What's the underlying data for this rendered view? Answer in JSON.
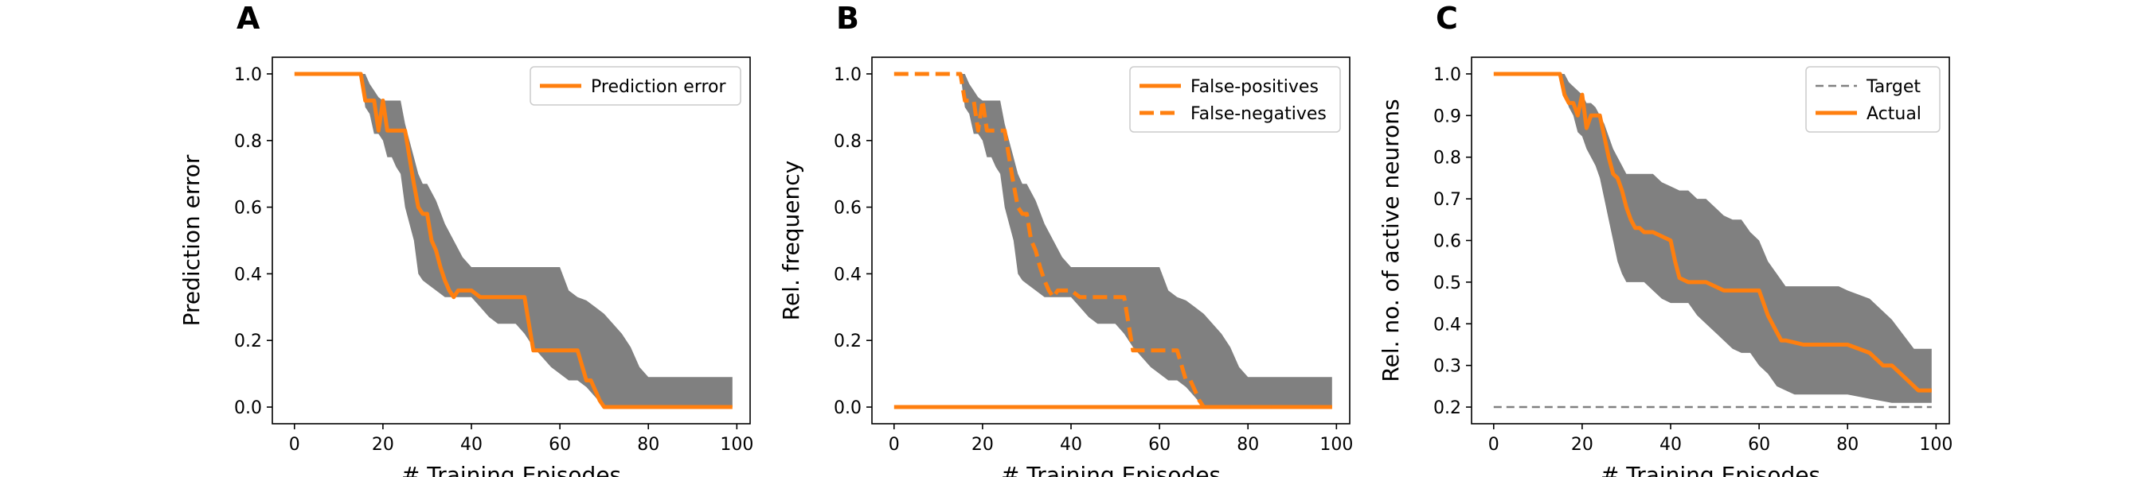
{
  "chart_data": [
    {
      "panel": "A",
      "type": "line",
      "xlabel": "# Training Episodes",
      "ylabel": "Prediction error",
      "xlim": [
        -5,
        103
      ],
      "ylim": [
        -0.05,
        1.05
      ],
      "xticks": [
        0,
        20,
        40,
        60,
        80,
        100
      ],
      "yticks": [
        0.0,
        0.2,
        0.4,
        0.6,
        0.8,
        1.0
      ],
      "ytick_labels": [
        "0.0",
        "0.2",
        "0.4",
        "0.6",
        "0.8",
        "1.0"
      ],
      "legend_position": "top-right",
      "band": {
        "x": [
          0,
          15,
          16,
          17,
          18,
          19,
          20,
          21,
          22,
          23,
          24,
          25,
          26,
          27,
          28,
          29,
          30,
          32,
          34,
          36,
          38,
          40,
          42,
          44,
          46,
          48,
          50,
          52,
          54,
          56,
          58,
          60,
          62,
          64,
          66,
          68,
          70,
          72,
          74,
          76,
          78,
          80,
          85,
          90,
          95,
          99
        ],
        "lower": [
          1.0,
          1.0,
          0.9,
          0.88,
          0.82,
          0.82,
          0.8,
          0.75,
          0.75,
          0.72,
          0.7,
          0.6,
          0.55,
          0.5,
          0.4,
          0.38,
          0.37,
          0.35,
          0.33,
          0.33,
          0.33,
          0.33,
          0.3,
          0.27,
          0.25,
          0.25,
          0.25,
          0.22,
          0.18,
          0.15,
          0.12,
          0.1,
          0.08,
          0.08,
          0.06,
          0.03,
          0.0,
          0.0,
          0.0,
          0.0,
          0.0,
          0.0,
          0.0,
          0.0,
          0.0,
          0.0
        ],
        "upper": [
          1.0,
          1.0,
          1.0,
          0.97,
          0.95,
          0.93,
          0.92,
          0.92,
          0.92,
          0.92,
          0.92,
          0.85,
          0.8,
          0.75,
          0.7,
          0.67,
          0.67,
          0.62,
          0.55,
          0.5,
          0.45,
          0.42,
          0.42,
          0.42,
          0.42,
          0.42,
          0.42,
          0.42,
          0.42,
          0.42,
          0.42,
          0.42,
          0.35,
          0.33,
          0.32,
          0.3,
          0.28,
          0.25,
          0.22,
          0.18,
          0.12,
          0.09,
          0.09,
          0.09,
          0.09,
          0.09
        ]
      },
      "series": [
        {
          "name": "Prediction error",
          "style": "solid",
          "color": "#ff7f0e",
          "x": [
            0,
            15,
            16,
            17,
            18,
            19,
            20,
            21,
            22,
            23,
            24,
            25,
            26,
            27,
            28,
            29,
            30,
            31,
            32,
            33,
            34,
            35,
            36,
            37,
            38,
            39,
            40,
            42,
            44,
            46,
            48,
            50,
            52,
            53,
            54,
            56,
            58,
            60,
            62,
            64,
            66,
            67,
            68,
            69,
            70,
            71,
            72,
            80,
            90,
            99
          ],
          "y": [
            1.0,
            1.0,
            0.92,
            0.92,
            0.92,
            0.83,
            0.92,
            0.83,
            0.83,
            0.83,
            0.83,
            0.83,
            0.75,
            0.67,
            0.6,
            0.58,
            0.58,
            0.5,
            0.47,
            0.42,
            0.38,
            0.35,
            0.33,
            0.35,
            0.35,
            0.35,
            0.35,
            0.33,
            0.33,
            0.33,
            0.33,
            0.33,
            0.33,
            0.25,
            0.17,
            0.17,
            0.17,
            0.17,
            0.17,
            0.17,
            0.08,
            0.08,
            0.05,
            0.02,
            0.0,
            0.0,
            0.0,
            0.0,
            0.0,
            0.0
          ]
        }
      ]
    },
    {
      "panel": "B",
      "type": "line",
      "xlabel": "# Training Episodes",
      "ylabel": "Rel. frequency",
      "xlim": [
        -5,
        103
      ],
      "ylim": [
        -0.05,
        1.05
      ],
      "xticks": [
        0,
        20,
        40,
        60,
        80,
        100
      ],
      "yticks": [
        0.0,
        0.2,
        0.4,
        0.6,
        0.8,
        1.0
      ],
      "ytick_labels": [
        "0.0",
        "0.2",
        "0.4",
        "0.6",
        "0.8",
        "1.0"
      ],
      "legend_position": "top-right",
      "band": {
        "x": [
          0,
          15,
          16,
          17,
          18,
          19,
          20,
          21,
          22,
          23,
          24,
          25,
          26,
          27,
          28,
          29,
          30,
          32,
          34,
          36,
          38,
          40,
          42,
          44,
          46,
          48,
          50,
          52,
          54,
          56,
          58,
          60,
          62,
          64,
          66,
          68,
          70,
          72,
          74,
          76,
          78,
          80,
          85,
          90,
          95,
          99
        ],
        "lower": [
          1.0,
          1.0,
          0.9,
          0.88,
          0.82,
          0.82,
          0.8,
          0.75,
          0.75,
          0.72,
          0.7,
          0.6,
          0.55,
          0.5,
          0.4,
          0.38,
          0.37,
          0.35,
          0.33,
          0.33,
          0.33,
          0.33,
          0.3,
          0.27,
          0.25,
          0.25,
          0.25,
          0.22,
          0.18,
          0.15,
          0.12,
          0.1,
          0.08,
          0.08,
          0.06,
          0.03,
          0.0,
          0.0,
          0.0,
          0.0,
          0.0,
          0.0,
          0.0,
          0.0,
          0.0,
          0.0
        ],
        "upper": [
          1.0,
          1.0,
          1.0,
          0.97,
          0.95,
          0.93,
          0.92,
          0.92,
          0.92,
          0.92,
          0.92,
          0.85,
          0.8,
          0.75,
          0.7,
          0.67,
          0.67,
          0.62,
          0.55,
          0.5,
          0.45,
          0.42,
          0.42,
          0.42,
          0.42,
          0.42,
          0.42,
          0.42,
          0.42,
          0.42,
          0.42,
          0.42,
          0.35,
          0.33,
          0.32,
          0.3,
          0.28,
          0.25,
          0.22,
          0.18,
          0.12,
          0.09,
          0.09,
          0.09,
          0.09,
          0.09
        ]
      },
      "series": [
        {
          "name": "False-positives",
          "style": "solid",
          "color": "#ff7f0e",
          "x": [
            0,
            99
          ],
          "y": [
            0.0,
            0.0
          ]
        },
        {
          "name": "False-negatives",
          "style": "dashed",
          "color": "#ff7f0e",
          "x": [
            0,
            15,
            16,
            17,
            18,
            19,
            20,
            21,
            22,
            23,
            24,
            25,
            26,
            27,
            28,
            29,
            30,
            31,
            32,
            33,
            34,
            35,
            36,
            37,
            38,
            39,
            40,
            42,
            44,
            46,
            48,
            50,
            52,
            53,
            54,
            56,
            58,
            60,
            62,
            64,
            66,
            67,
            68,
            69,
            70,
            71,
            72,
            80,
            90,
            99
          ],
          "y": [
            1.0,
            1.0,
            0.92,
            0.92,
            0.92,
            0.83,
            0.92,
            0.83,
            0.83,
            0.83,
            0.83,
            0.83,
            0.75,
            0.67,
            0.6,
            0.58,
            0.58,
            0.5,
            0.47,
            0.42,
            0.38,
            0.35,
            0.33,
            0.35,
            0.35,
            0.35,
            0.35,
            0.33,
            0.33,
            0.33,
            0.33,
            0.33,
            0.33,
            0.25,
            0.17,
            0.17,
            0.17,
            0.17,
            0.17,
            0.17,
            0.08,
            0.08,
            0.05,
            0.02,
            0.0,
            0.0,
            0.0,
            0.0,
            0.0,
            0.0
          ]
        }
      ]
    },
    {
      "panel": "C",
      "type": "line",
      "xlabel": "# Training Episodes",
      "ylabel": "Rel. no. of active neurons",
      "xlim": [
        -5,
        103
      ],
      "ylim": [
        0.16,
        1.04
      ],
      "xticks": [
        0,
        20,
        40,
        60,
        80,
        100
      ],
      "yticks": [
        0.2,
        0.3,
        0.4,
        0.5,
        0.6,
        0.7,
        0.8,
        0.9,
        1.0
      ],
      "ytick_labels": [
        "0.2",
        "0.3",
        "0.4",
        "0.5",
        "0.6",
        "0.7",
        "0.8",
        "0.9",
        "1.0"
      ],
      "legend_position": "top-right",
      "band": {
        "x": [
          0,
          15,
          16,
          17,
          18,
          19,
          20,
          21,
          22,
          23,
          24,
          25,
          26,
          27,
          28,
          29,
          30,
          32,
          34,
          36,
          38,
          40,
          42,
          44,
          46,
          48,
          50,
          52,
          54,
          56,
          58,
          60,
          62,
          64,
          66,
          68,
          70,
          72,
          74,
          76,
          78,
          80,
          85,
          90,
          95,
          99
        ],
        "lower": [
          1.0,
          1.0,
          0.95,
          0.92,
          0.9,
          0.86,
          0.85,
          0.82,
          0.8,
          0.78,
          0.75,
          0.7,
          0.65,
          0.6,
          0.55,
          0.52,
          0.5,
          0.5,
          0.5,
          0.48,
          0.46,
          0.45,
          0.45,
          0.45,
          0.42,
          0.4,
          0.38,
          0.36,
          0.34,
          0.33,
          0.33,
          0.3,
          0.28,
          0.25,
          0.24,
          0.23,
          0.23,
          0.23,
          0.23,
          0.23,
          0.23,
          0.23,
          0.22,
          0.21,
          0.21,
          0.21
        ],
        "upper": [
          1.0,
          1.0,
          1.0,
          0.98,
          0.97,
          0.96,
          0.95,
          0.93,
          0.93,
          0.92,
          0.9,
          0.88,
          0.85,
          0.82,
          0.8,
          0.78,
          0.76,
          0.76,
          0.76,
          0.76,
          0.74,
          0.73,
          0.72,
          0.72,
          0.7,
          0.7,
          0.68,
          0.66,
          0.65,
          0.65,
          0.62,
          0.6,
          0.55,
          0.52,
          0.49,
          0.49,
          0.49,
          0.49,
          0.49,
          0.49,
          0.49,
          0.48,
          0.46,
          0.41,
          0.34,
          0.34
        ]
      },
      "series": [
        {
          "name": "Target",
          "style": "dashed",
          "color": "#808080",
          "x": [
            0,
            99
          ],
          "y": [
            0.2,
            0.2
          ]
        },
        {
          "name": "Actual",
          "style": "solid",
          "color": "#ff7f0e",
          "x": [
            0,
            15,
            16,
            17,
            18,
            19,
            20,
            21,
            22,
            24,
            25,
            26,
            27,
            28,
            29,
            30,
            31,
            32,
            33,
            34,
            35,
            36,
            38,
            40,
            41,
            42,
            44,
            46,
            48,
            50,
            52,
            54,
            56,
            58,
            60,
            62,
            64,
            65,
            66,
            68,
            70,
            72,
            74,
            76,
            78,
            80,
            85,
            88,
            90,
            92,
            94,
            96,
            99
          ],
          "y": [
            1.0,
            1.0,
            0.95,
            0.93,
            0.93,
            0.9,
            0.95,
            0.87,
            0.9,
            0.9,
            0.85,
            0.8,
            0.76,
            0.75,
            0.72,
            0.68,
            0.65,
            0.63,
            0.63,
            0.62,
            0.62,
            0.62,
            0.61,
            0.6,
            0.55,
            0.51,
            0.5,
            0.5,
            0.5,
            0.49,
            0.48,
            0.48,
            0.48,
            0.48,
            0.48,
            0.42,
            0.38,
            0.36,
            0.36,
            0.355,
            0.35,
            0.35,
            0.35,
            0.35,
            0.35,
            0.35,
            0.33,
            0.3,
            0.3,
            0.28,
            0.26,
            0.24,
            0.24
          ]
        }
      ]
    }
  ]
}
